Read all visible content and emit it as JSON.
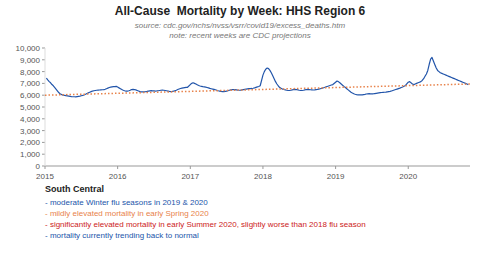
{
  "chart_data": {
    "type": "line",
    "title": "All-Cause  Mortality by Week: HHS Region 6",
    "subtitle": [
      "source: cdc.gov/nchs/nvss/vsrr/covid19/excess_deaths.htm",
      "note: recent weeks are CDC projections"
    ],
    "annotations": [
      {
        "text": "South Central"
      },
      {
        "text": "- moderate Winter flu seasons in 2019 & 2020",
        "color": "#2255aa"
      },
      {
        "text": "- mildly elevated mortality in early Spring 2020",
        "color": "#e8824a"
      },
      {
        "text": "- significantly elevated mortality in early Summer 2020, slightly worse than 2018 flu season",
        "color": "#cc2222"
      },
      {
        "text": "- mortality currently trending back to normal",
        "color": "#2255aa"
      }
    ],
    "xlim": [
      2015.0,
      2020.85
    ],
    "xticks": [
      2015,
      2016,
      2017,
      2018,
      2019,
      2020
    ],
    "ylim": [
      0,
      10000
    ],
    "yticks": [
      0,
      {
        "value": 1000,
        "label": "1,000"
      },
      {
        "value": 2000,
        "label": "2,000"
      },
      {
        "value": 3000,
        "label": "3,000"
      },
      {
        "value": 4000,
        "label": "4,000"
      },
      {
        "value": 5000,
        "label": "5,000"
      },
      {
        "value": 6000,
        "label": "6,000"
      },
      {
        "value": 7000,
        "label": "7,000"
      },
      {
        "value": 8000,
        "label": "8,000"
      },
      {
        "value": 9000,
        "label": "9,000"
      },
      {
        "value": 10000,
        "label": "10,000"
      }
    ],
    "grid": false,
    "series": [
      {
        "color": "#2255aa",
        "line_style": "solid",
        "x": [
          2015.019,
          2015.038,
          2015.058,
          2015.077,
          2015.096,
          2015.115,
          2015.135,
          2015.154,
          2015.173,
          2015.192,
          2015.212,
          2015.231,
          2015.25,
          2015.269,
          2015.288,
          2015.308,
          2015.327,
          2015.346,
          2015.365,
          2015.385,
          2015.404,
          2015.423,
          2015.442,
          2015.462,
          2015.481,
          2015.5,
          2015.519,
          2015.538,
          2015.558,
          2015.577,
          2015.596,
          2015.615,
          2015.635,
          2015.654,
          2015.673,
          2015.692,
          2015.712,
          2015.731,
          2015.75,
          2015.769,
          2015.788,
          2015.808,
          2015.827,
          2015.846,
          2015.865,
          2015.885,
          2015.904,
          2015.923,
          2015.942,
          2015.962,
          2015.981,
          2016.0,
          2016.019,
          2016.038,
          2016.058,
          2016.077,
          2016.096,
          2016.115,
          2016.135,
          2016.154,
          2016.173,
          2016.192,
          2016.212,
          2016.231,
          2016.25,
          2016.269,
          2016.288,
          2016.308,
          2016.327,
          2016.346,
          2016.365,
          2016.385,
          2016.404,
          2016.423,
          2016.442,
          2016.462,
          2016.481,
          2016.5,
          2016.519,
          2016.538,
          2016.558,
          2016.577,
          2016.596,
          2016.615,
          2016.635,
          2016.654,
          2016.673,
          2016.692,
          2016.712,
          2016.731,
          2016.75,
          2016.769,
          2016.788,
          2016.808,
          2016.827,
          2016.846,
          2016.865,
          2016.885,
          2016.904,
          2016.923,
          2016.942,
          2016.962,
          2017.0,
          2017.019,
          2017.038,
          2017.058,
          2017.077,
          2017.096,
          2017.115,
          2017.135,
          2017.154,
          2017.173,
          2017.192,
          2017.212,
          2017.231,
          2017.25,
          2017.269,
          2017.288,
          2017.308,
          2017.327,
          2017.346,
          2017.365,
          2017.385,
          2017.404,
          2017.423,
          2017.442,
          2017.462,
          2017.481,
          2017.5,
          2017.519,
          2017.538,
          2017.558,
          2017.577,
          2017.596,
          2017.615,
          2017.635,
          2017.654,
          2017.673,
          2017.692,
          2017.712,
          2017.731,
          2017.75,
          2017.769,
          2017.788,
          2017.808,
          2017.827,
          2017.846,
          2017.865,
          2017.885,
          2017.904,
          2017.923,
          2017.942,
          2017.962,
          2018.0,
          2018.019,
          2018.038,
          2018.058,
          2018.077,
          2018.096,
          2018.115,
          2018.135,
          2018.154,
          2018.173,
          2018.192,
          2018.212,
          2018.231,
          2018.25,
          2018.269,
          2018.288,
          2018.308,
          2018.327,
          2018.346,
          2018.365,
          2018.385,
          2018.404,
          2018.423,
          2018.442,
          2018.462,
          2018.481,
          2018.5,
          2018.519,
          2018.538,
          2018.558,
          2018.577,
          2018.596,
          2018.615,
          2018.635,
          2018.654,
          2018.673,
          2018.692,
          2018.712,
          2018.731,
          2018.75,
          2018.769,
          2018.788,
          2018.808,
          2018.827,
          2018.846,
          2018.865,
          2018.885,
          2018.904,
          2018.923,
          2018.942,
          2018.962,
          2019.0,
          2019.019,
          2019.038,
          2019.058,
          2019.077,
          2019.096,
          2019.115,
          2019.135,
          2019.154,
          2019.173,
          2019.192,
          2019.212,
          2019.231,
          2019.25,
          2019.269,
          2019.288,
          2019.308,
          2019.327,
          2019.346,
          2019.365,
          2019.385,
          2019.404,
          2019.423,
          2019.442,
          2019.462,
          2019.481,
          2019.5,
          2019.519,
          2019.538,
          2019.558,
          2019.577,
          2019.596,
          2019.615,
          2019.635,
          2019.654,
          2019.673,
          2019.692,
          2019.712,
          2019.731,
          2019.75,
          2019.769,
          2019.788,
          2019.808,
          2019.827,
          2019.846,
          2019.865,
          2019.885,
          2019.904,
          2019.923,
          2019.942,
          2019.962,
          2020.0,
          2020.019,
          2020.038,
          2020.058,
          2020.077,
          2020.096,
          2020.115,
          2020.135,
          2020.154,
          2020.173,
          2020.192,
          2020.212,
          2020.231,
          2020.25,
          2020.269,
          2020.288,
          2020.308,
          2020.327,
          2020.346,
          2020.365,
          2020.385,
          2020.404,
          2020.423,
          2020.442,
          2020.462,
          2020.481,
          2020.5,
          2020.519,
          2020.538,
          2020.558,
          2020.577,
          2020.596,
          2020.615,
          2020.635,
          2020.654,
          2020.673,
          2020.692,
          2020.712,
          2020.731,
          2020.75,
          2020.769,
          2020.788,
          2020.808,
          2020.827
        ],
        "values": [
          7450,
          7300,
          7150,
          7050,
          6900,
          6800,
          6650,
          6500,
          6350,
          6200,
          6100,
          6050,
          6000,
          5980,
          5960,
          5940,
          5920,
          5900,
          5880,
          5870,
          5870,
          5860,
          5880,
          5900,
          5920,
          5950,
          5980,
          6020,
          6080,
          6150,
          6200,
          6250,
          6300,
          6350,
          6380,
          6400,
          6420,
          6430,
          6440,
          6450,
          6460,
          6470,
          6500,
          6550,
          6600,
          6650,
          6680,
          6700,
          6720,
          6730,
          6750,
          6700,
          6620,
          6550,
          6480,
          6420,
          6380,
          6350,
          6350,
          6380,
          6420,
          6480,
          6500,
          6480,
          6450,
          6400,
          6350,
          6300,
          6280,
          6280,
          6290,
          6300,
          6320,
          6350,
          6370,
          6380,
          6370,
          6360,
          6350,
          6360,
          6380,
          6400,
          6420,
          6430,
          6420,
          6400,
          6380,
          6350,
          6320,
          6310,
          6320,
          6340,
          6380,
          6420,
          6480,
          6530,
          6570,
          6600,
          6620,
          6640,
          6660,
          6670,
          6900,
          7000,
          7050,
          7000,
          6950,
          6880,
          6820,
          6780,
          6750,
          6720,
          6700,
          6680,
          6650,
          6620,
          6580,
          6550,
          6520,
          6490,
          6460,
          6420,
          6380,
          6350,
          6320,
          6310,
          6300,
          6320,
          6350,
          6380,
          6420,
          6450,
          6470,
          6480,
          6470,
          6450,
          6430,
          6420,
          6430,
          6450,
          6470,
          6490,
          6510,
          6530,
          6550,
          6560,
          6570,
          6590,
          6620,
          6660,
          6700,
          6740,
          6800,
          7700,
          8000,
          8200,
          8300,
          8250,
          8100,
          7900,
          7650,
          7400,
          7150,
          6950,
          6780,
          6650,
          6580,
          6520,
          6480,
          6450,
          6420,
          6400,
          6400,
          6420,
          6450,
          6480,
          6500,
          6480,
          6450,
          6420,
          6400,
          6400,
          6420,
          6450,
          6480,
          6500,
          6480,
          6460,
          6450,
          6440,
          6450,
          6470,
          6490,
          6520,
          6550,
          6580,
          6620,
          6650,
          6700,
          6740,
          6780,
          6820,
          6860,
          6900,
          7100,
          7200,
          7150,
          7050,
          6950,
          6850,
          6750,
          6650,
          6550,
          6450,
          6350,
          6250,
          6180,
          6120,
          6080,
          6050,
          6030,
          6020,
          6020,
          6030,
          6050,
          6070,
          6100,
          6120,
          6130,
          6120,
          6110,
          6120,
          6140,
          6160,
          6180,
          6200,
          6220,
          6230,
          6240,
          6250,
          6260,
          6280,
          6300,
          6320,
          6360,
          6400,
          6440,
          6480,
          6520,
          6560,
          6600,
          6650,
          6700,
          6760,
          6830,
          7100,
          7150,
          7050,
          6950,
          6900,
          6950,
          7000,
          7050,
          7100,
          7150,
          7250,
          7400,
          7600,
          7800,
          8100,
          8600,
          9050,
          9200,
          8900,
          8600,
          8300,
          8100,
          8000,
          7900,
          7850,
          7800,
          7750,
          7700,
          7650,
          7600,
          7550,
          7500,
          7450,
          7400,
          7350,
          7300,
          7250,
          7200,
          7150,
          7100,
          7050,
          7000,
          6950,
          6900
        ]
      },
      {
        "color": "#e8824a",
        "line_style": "dotted",
        "x": [
          2015.0,
          2020.85
        ],
        "values": [
          6000,
          6950
        ]
      }
    ]
  }
}
